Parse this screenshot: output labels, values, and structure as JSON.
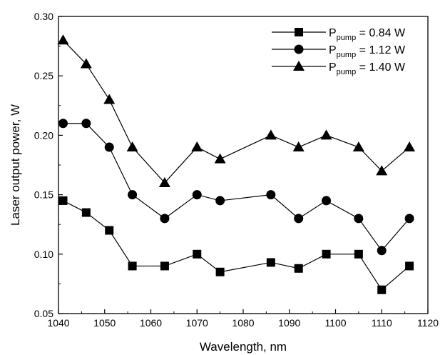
{
  "chart_data": {
    "type": "line",
    "xlabel": "Wavelength, nm",
    "ylabel": "Laser output power, W",
    "xlim": [
      1040,
      1120
    ],
    "ylim": [
      0.05,
      0.3
    ],
    "x_ticks": [
      "1040",
      "1050",
      "1060",
      "1070",
      "1080",
      "1090",
      "1100",
      "1110",
      "1120"
    ],
    "y_ticks": [
      "0.05",
      "0.10",
      "0.15",
      "0.20",
      "0.25",
      "0.30"
    ],
    "grid": false,
    "legend_position": "top-right",
    "series": [
      {
        "legend_main": "P",
        "legend_sub": "pump",
        "legend_value": " = 0.84 W",
        "marker": "square",
        "x": [
          1041,
          1046,
          1051,
          1056,
          1063,
          1070,
          1075,
          1086,
          1092,
          1098,
          1105,
          1110,
          1116
        ],
        "y": [
          0.145,
          0.135,
          0.12,
          0.09,
          0.09,
          0.1,
          0.085,
          0.093,
          0.088,
          0.1,
          0.1,
          0.07,
          0.09
        ]
      },
      {
        "legend_main": "P",
        "legend_sub": "pump",
        "legend_value": " = 1.12 W",
        "marker": "circle",
        "x": [
          1041,
          1046,
          1051,
          1056,
          1063,
          1070,
          1075,
          1086,
          1092,
          1098,
          1105,
          1110,
          1116
        ],
        "y": [
          0.21,
          0.21,
          0.19,
          0.15,
          0.13,
          0.15,
          0.145,
          0.15,
          0.13,
          0.145,
          0.13,
          0.103,
          0.13
        ]
      },
      {
        "legend_main": "P",
        "legend_sub": "pump",
        "legend_value": " = 1.40 W",
        "marker": "triangle",
        "x": [
          1041,
          1046,
          1051,
          1056,
          1063,
          1070,
          1075,
          1086,
          1092,
          1098,
          1105,
          1110,
          1116
        ],
        "y": [
          0.28,
          0.26,
          0.23,
          0.19,
          0.16,
          0.19,
          0.18,
          0.2,
          0.19,
          0.2,
          0.19,
          0.17,
          0.19
        ]
      }
    ]
  }
}
